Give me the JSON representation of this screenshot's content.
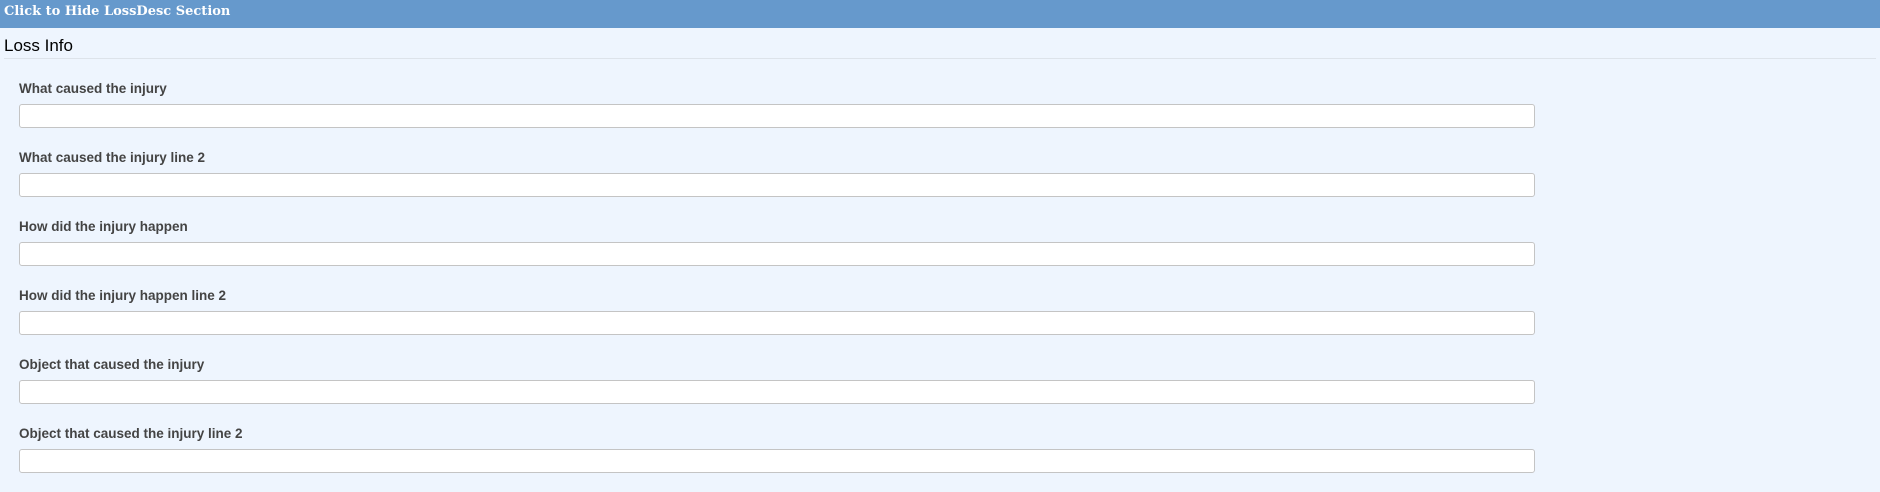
{
  "toggle_bar": {
    "label": "Click to Hide LossDesc Section"
  },
  "section": {
    "title": "Loss Info"
  },
  "fields": [
    {
      "label": "What caused the injury",
      "value": ""
    },
    {
      "label": "What caused the injury line 2",
      "value": ""
    },
    {
      "label": "How did the injury happen",
      "value": ""
    },
    {
      "label": "How did the injury happen line 2",
      "value": ""
    },
    {
      "label": "Object that caused the injury",
      "value": ""
    },
    {
      "label": "Object that caused the injury line 2",
      "value": ""
    }
  ],
  "colors": {
    "header_bar": "#6699cc",
    "background": "#eef5fe"
  }
}
